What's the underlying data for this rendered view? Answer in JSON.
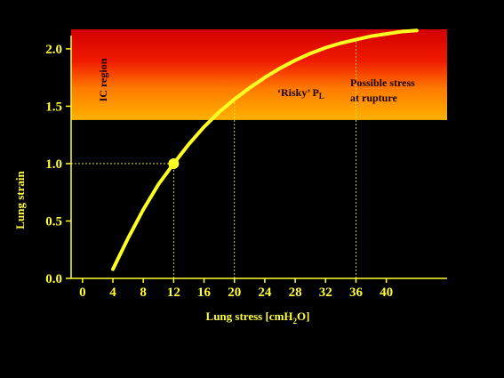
{
  "chart_data": {
    "type": "line",
    "title": "",
    "xlabel_main": "Lung stress [cmH",
    "xlabel_sub": "2",
    "xlabel_tail": "O]",
    "ylabel": "Lung strain",
    "x_ticks": [
      "0",
      "4",
      "8",
      "12",
      "16",
      "20",
      "24",
      "28",
      "32",
      "36",
      "40"
    ],
    "y_ticks": [
      "0.0",
      "0.5",
      "1.0",
      "1.5",
      "2.0"
    ],
    "xlim": [
      -1.5,
      48
    ],
    "ylim": [
      0,
      2.1
    ],
    "grid": false,
    "series": [
      {
        "x": [
          4,
          6,
          8,
          10,
          12,
          14,
          16,
          18,
          20,
          22,
          24,
          26,
          28,
          30,
          32,
          34,
          36,
          38,
          40,
          42,
          44
        ],
        "y": [
          0.08,
          0.35,
          0.6,
          0.82,
          1.0,
          1.17,
          1.32,
          1.45,
          1.56,
          1.66,
          1.75,
          1.83,
          1.9,
          1.96,
          2.01,
          2.05,
          2.08,
          2.11,
          2.13,
          2.15,
          2.16
        ]
      }
    ],
    "marker_point": {
      "x": 12,
      "y": 1.0
    },
    "guide_lines": [
      {
        "x": 12,
        "y": 1.0
      },
      {
        "x": 20,
        "y": 1.56
      },
      {
        "x": 36,
        "y": 2.08
      }
    ],
    "danger_band": {
      "y_from": 1.38,
      "y_to": 2.17
    },
    "annotations": {
      "ic_region": "IC region",
      "risky_main": "‘Risky’ P",
      "risky_sub": "L",
      "rupture_line1": "Possible stress",
      "rupture_line2": "at rupture"
    },
    "colors": {
      "axis": "#ffff33",
      "curve": "#ffff22",
      "background": "#000000"
    }
  }
}
